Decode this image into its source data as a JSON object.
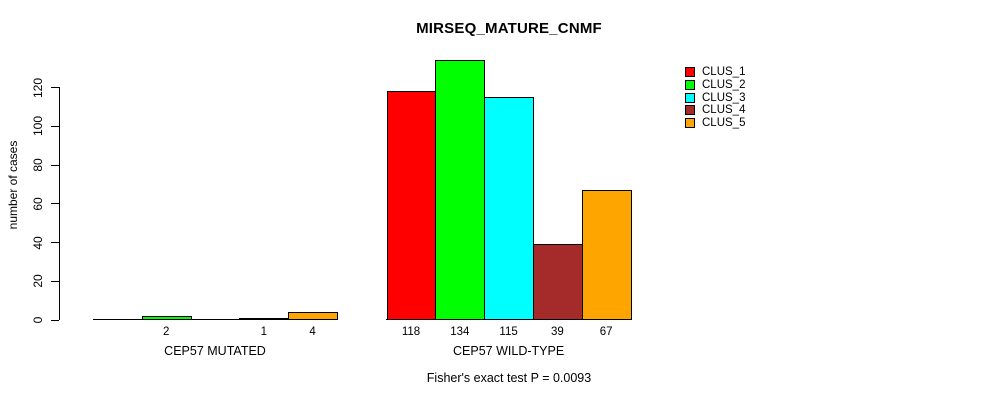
{
  "chart_data": {
    "type": "bar",
    "title": "MIRSEQ_MATURE_CNMF",
    "ylabel": "number of cases",
    "xlabel": "",
    "ylim": [
      0,
      139
    ],
    "yticks": [
      0,
      20,
      40,
      60,
      80,
      100,
      120
    ],
    "grid": false,
    "legend_position": "top-right",
    "legend": [
      {
        "name": "CLUS_1",
        "color": "#ff0000"
      },
      {
        "name": "CLUS_2",
        "color": "#00ff00"
      },
      {
        "name": "CLUS_3",
        "color": "#00ffff"
      },
      {
        "name": "CLUS_4",
        "color": "#a52a2a"
      },
      {
        "name": "CLUS_5",
        "color": "#ffa500"
      }
    ],
    "groups": [
      {
        "label": "CEP57 MUTATED",
        "values": [
          0,
          2,
          0,
          1,
          4
        ],
        "bar_labels": [
          "",
          "2",
          "",
          "1",
          "4"
        ]
      },
      {
        "label": "CEP57 WILD-TYPE",
        "values": [
          118,
          134,
          115,
          39,
          67
        ],
        "bar_labels": [
          "118",
          "134",
          "115",
          "39",
          "67"
        ]
      }
    ],
    "caption": "Fisher's exact test P = 0.0093"
  }
}
